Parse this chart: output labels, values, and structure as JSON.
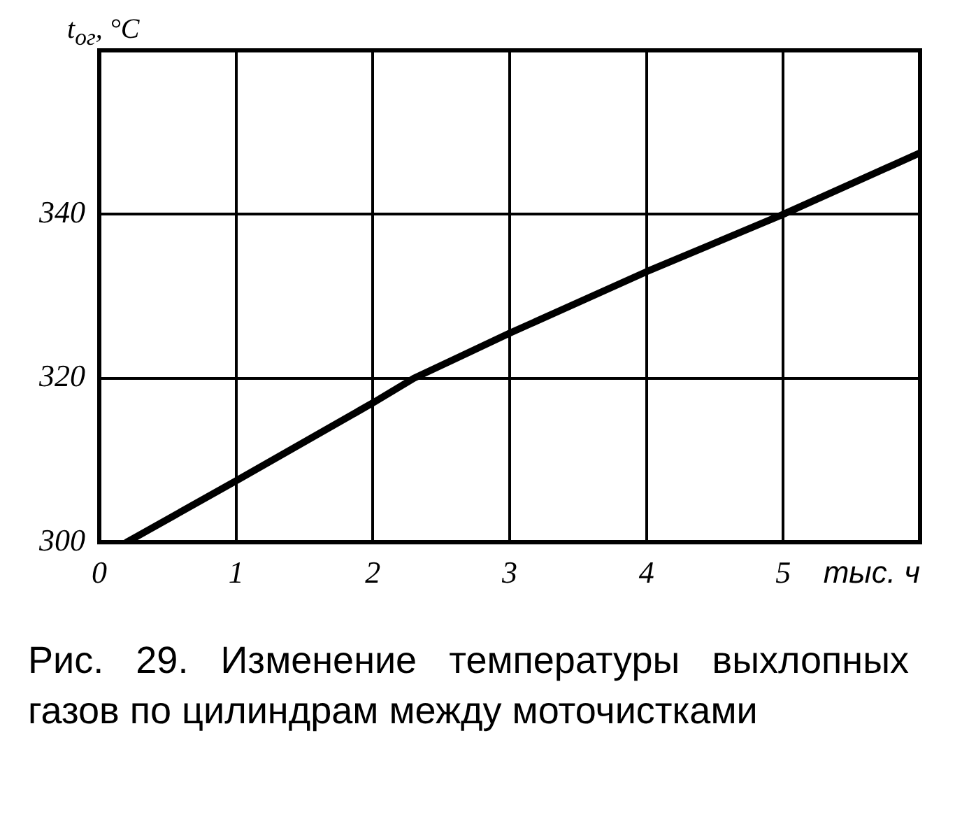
{
  "chart_data": {
    "type": "line",
    "title": "Рис. 29. Изменение температуры выхлопных газов по цилиндрам между моточистками",
    "xlabel": "тыс. ч",
    "ylabel": "t$_{ог}$, °C",
    "series": [
      {
        "color": "#000000",
        "x": [
          0.2,
          1,
          2,
          2.3,
          3,
          4,
          5,
          6
        ],
        "values": [
          300,
          307.5,
          317,
          320,
          325.5,
          333,
          340,
          347.5
        ]
      }
    ],
    "xlim": [
      0,
      6
    ],
    "xticks": [
      0,
      1,
      2,
      3,
      4,
      5
    ],
    "ylim": [
      300,
      360
    ],
    "yticks": [
      300,
      320,
      340
    ],
    "grid": true,
    "legend": false,
    "marker": "none",
    "line_style": "solid"
  }
}
